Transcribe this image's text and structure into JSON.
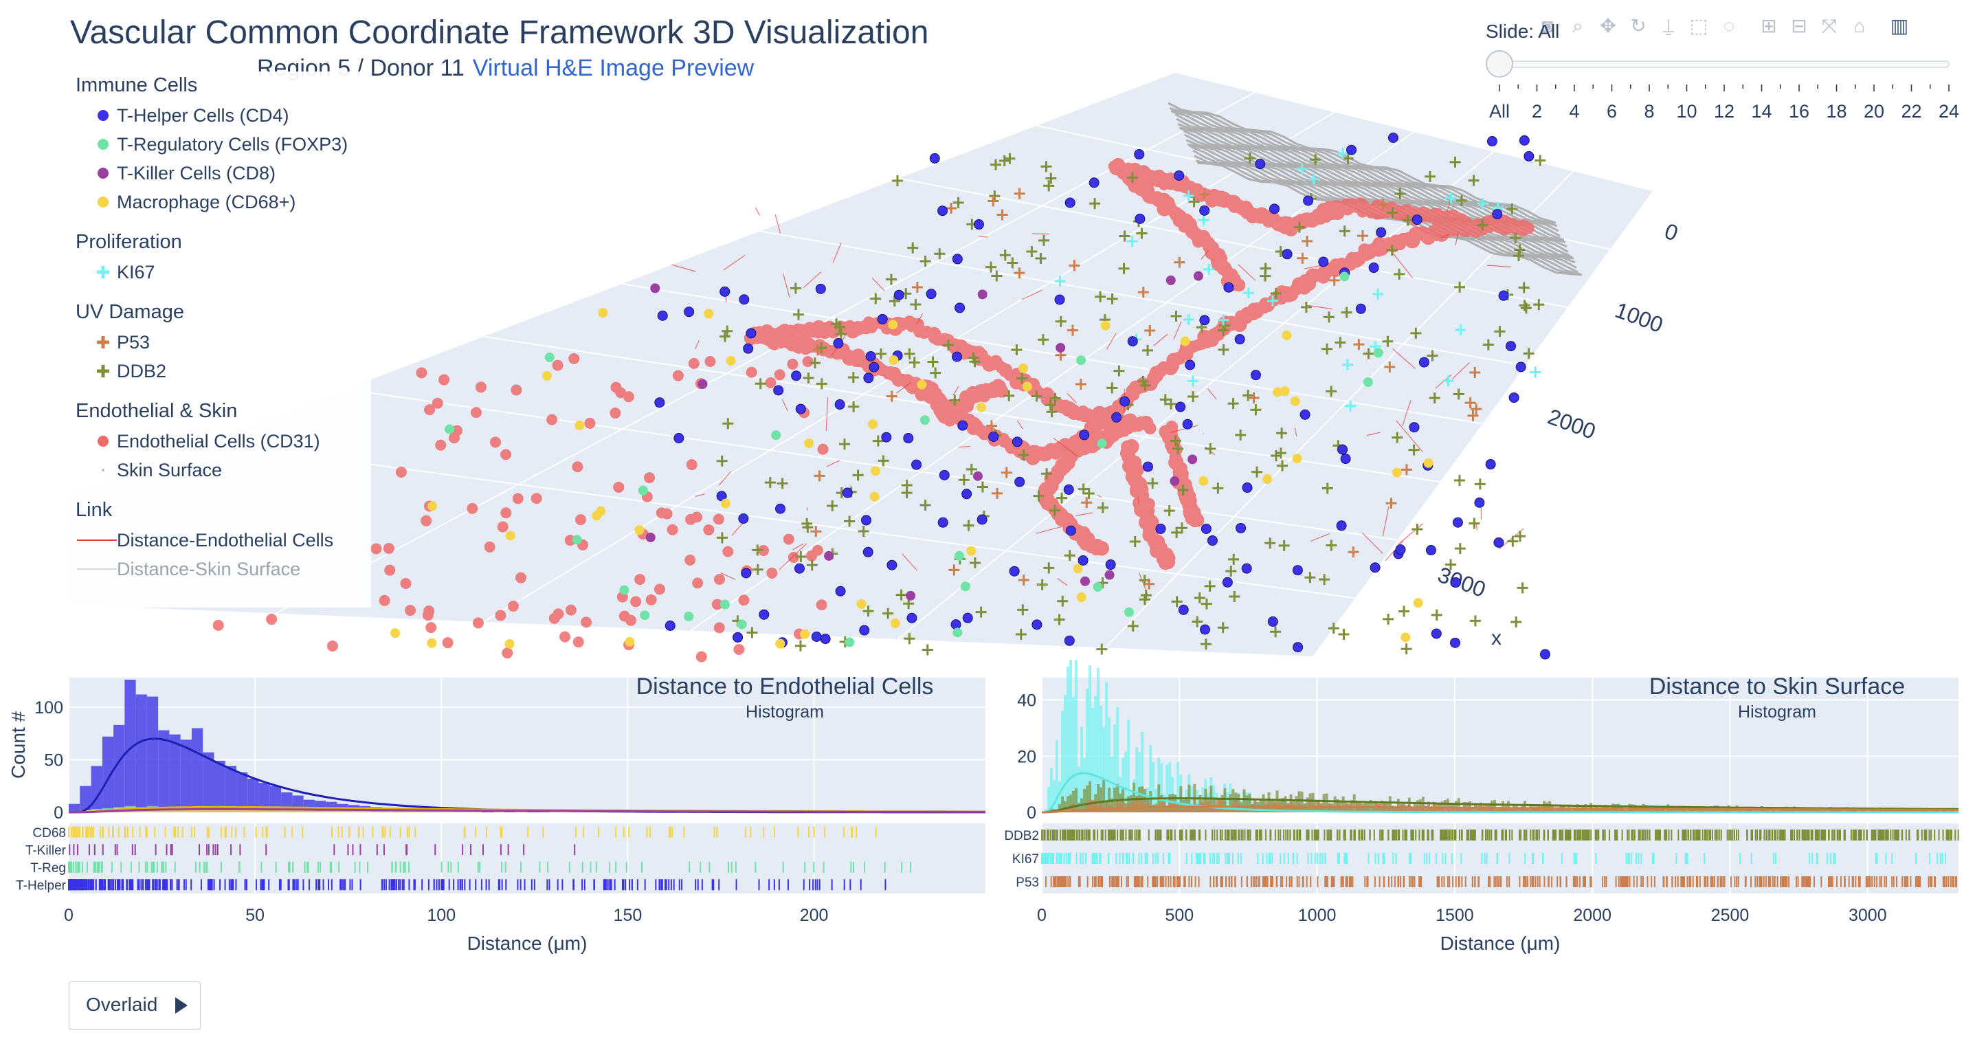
{
  "header": {
    "title": "Vascular Common Coordinate Framework 3D Visualization",
    "subtitle": "Region 5 / Donor 11",
    "link_label": "Virtual H&E Image Preview"
  },
  "legend": {
    "groups": [
      {
        "title": "Immune Cells",
        "items": [
          {
            "label": "T-Helper Cells (CD4)",
            "symbol": "dot",
            "color": "#3b32e8"
          },
          {
            "label": "T-Regulatory Cells (FOXP3)",
            "symbol": "dot",
            "color": "#6fe3a6"
          },
          {
            "label": "T-Killer Cells (CD8)",
            "symbol": "dot",
            "color": "#9b3fa0"
          },
          {
            "label": "Macrophage (CD68+)",
            "symbol": "dot",
            "color": "#f5d547"
          }
        ]
      },
      {
        "title": "Proliferation",
        "items": [
          {
            "label": "KI67",
            "symbol": "cross",
            "color": "#6ff2f0"
          }
        ]
      },
      {
        "title": "UV Damage",
        "items": [
          {
            "label": "P53",
            "symbol": "cross",
            "color": "#cc7f4d"
          },
          {
            "label": "DDB2",
            "symbol": "cross",
            "color": "#7e8f3a"
          }
        ]
      },
      {
        "title": "Endothelial & Skin",
        "items": [
          {
            "label": "Endothelial Cells (CD31)",
            "symbol": "dot",
            "color": "#ef6b6b"
          },
          {
            "label": "Skin Surface",
            "symbol": "small",
            "color": "#c0c0c0"
          }
        ]
      },
      {
        "title": "Link",
        "items": [
          {
            "label": "Distance-Endothelial Cells",
            "symbol": "line",
            "color": "#e63b3b"
          },
          {
            "label": "Distance-Skin Surface",
            "symbol": "line",
            "color": "#d8d8d8",
            "off": true
          }
        ]
      }
    ]
  },
  "slider": {
    "prefix": "Slide: ",
    "current": "All",
    "ticks": [
      "All",
      "2",
      "4",
      "6",
      "8",
      "10",
      "12",
      "14",
      "16",
      "18",
      "20",
      "22",
      "24"
    ]
  },
  "modebar": {
    "icons": [
      "camera-icon",
      "zoom-icon",
      "pan-icon",
      "orbit-rotate-icon",
      "turntable-icon",
      "box-select-icon",
      "lasso-select-icon",
      "zoom-in-icon",
      "zoom-out-icon",
      "autoscale-icon",
      "reset-axes-icon",
      "plotly-logo-icon"
    ]
  },
  "overlaid_button": {
    "label": "Overlaid"
  },
  "colors": {
    "t_helper": "#3b32e8",
    "t_reg": "#6fe3a6",
    "t_killer": "#9b3fa0",
    "macrophage": "#f5d547",
    "ki67": "#6ff2f0",
    "p53": "#cc7f4d",
    "ddb2": "#7e8f3a",
    "endothelial": "#ef6b6b",
    "skin": "#a9a9a9",
    "plot_bg": "#e5ecf6"
  },
  "chart_data": [
    {
      "type": "scatter3d",
      "axes": {
        "x": {
          "title": "x",
          "ticks": [
            0,
            1000,
            2000,
            3000
          ]
        }
      },
      "legend_placement": "top-left",
      "grid": true
    },
    {
      "type": "histogram",
      "title": "Distance to Endothelial Cells",
      "subtitle": "Histogram",
      "xlabel": "Distance (μm)",
      "ylabel": "Count #",
      "xlim": [
        0,
        246
      ],
      "ylim": [
        0,
        128
      ],
      "x_ticks": [
        0,
        50,
        100,
        150,
        200
      ],
      "y_ticks": [
        0,
        50,
        100
      ],
      "bin_width": 3,
      "series": [
        {
          "key": "t_helper",
          "values": [
            8,
            25,
            44,
            72,
            83,
            126,
            112,
            110,
            78,
            74,
            69,
            80,
            57,
            49,
            44,
            38,
            32,
            28,
            25,
            19,
            16,
            12,
            11,
            10,
            8,
            7,
            6,
            5,
            4,
            4,
            3,
            3,
            3,
            2,
            2,
            2,
            1,
            1,
            1,
            1,
            1,
            1,
            1,
            0,
            0,
            0,
            1,
            0,
            0,
            0,
            0,
            1,
            0,
            0,
            0,
            0,
            0,
            0,
            0,
            0,
            0,
            0,
            0,
            0,
            0,
            0,
            0,
            1,
            0,
            0,
            0,
            0,
            0,
            0,
            0,
            0,
            0,
            0,
            0,
            0,
            0,
            0
          ]
        },
        {
          "key": "t_reg",
          "values": [
            1,
            2,
            3,
            4,
            5,
            6,
            5,
            6,
            5,
            5,
            4,
            4,
            4,
            3,
            3,
            3,
            3,
            2,
            2,
            2,
            2,
            1,
            1,
            1,
            1,
            1,
            1,
            1,
            1,
            0,
            0,
            0,
            0,
            0,
            0,
            0,
            0,
            0,
            0,
            0,
            0,
            0,
            0,
            0,
            0,
            0,
            0,
            0,
            0,
            0,
            0,
            0,
            0,
            0,
            0,
            0,
            0,
            0,
            0,
            0,
            0,
            0,
            0,
            0,
            0,
            0,
            0,
            0,
            0,
            0,
            0,
            0,
            0,
            0,
            0,
            0,
            0,
            0,
            0,
            0,
            0,
            0
          ]
        },
        {
          "key": "macrophage",
          "values": [
            1,
            2,
            3,
            3,
            4,
            5,
            4,
            5,
            4,
            4,
            4,
            4,
            4,
            3,
            4,
            3,
            3,
            3,
            3,
            2,
            3,
            2,
            2,
            2,
            2,
            2,
            2,
            1,
            1,
            1,
            1,
            1,
            1,
            1,
            1,
            1,
            1,
            0,
            1,
            0,
            1,
            0,
            0,
            0,
            0,
            0,
            0,
            0,
            0,
            1,
            0,
            0,
            0,
            0,
            0,
            0,
            0,
            0,
            0,
            0,
            0,
            0,
            0,
            0,
            0,
            0,
            0,
            0,
            0,
            0,
            0,
            0,
            0,
            0,
            0,
            0,
            0,
            0,
            0,
            0,
            0,
            0
          ]
        }
      ],
      "fit_curves": [
        {
          "key": "t_helper",
          "color": "#1f1fb5",
          "peak": 70,
          "mode": 23,
          "sigma": 0.62
        },
        {
          "key": "macrophage",
          "color": "#e0b000",
          "peak": 5,
          "mode": 40,
          "sigma": 0.9
        },
        {
          "key": "t_killer",
          "color": "#9b3fa0",
          "peak": 3,
          "mode": 40,
          "sigma": 0.9
        }
      ],
      "rug_rows": [
        "CD68",
        "T-Killer",
        "T-Reg",
        "T-Helper"
      ]
    },
    {
      "type": "histogram",
      "title": "Distance to Skin Surface",
      "subtitle": "Histogram",
      "xlabel": "Distance (μm)",
      "ylabel": "",
      "xlim": [
        0,
        3330
      ],
      "ylim": [
        0,
        48
      ],
      "x_ticks": [
        0,
        500,
        1000,
        1500,
        2000,
        2500,
        3000
      ],
      "y_ticks": [
        0,
        20,
        40
      ],
      "bin_width": 10,
      "series": [
        {
          "key": "ki67",
          "peak": 48,
          "mode": 100,
          "decay": 300
        },
        {
          "key": "ddb2",
          "peak": 9,
          "mode": 150,
          "decay": 1400
        },
        {
          "key": "p53",
          "peak": 4,
          "mode": 200,
          "decay": 2000
        }
      ],
      "fit_curves": [
        {
          "key": "ki67",
          "color": "#5fe6dc",
          "peak": 14,
          "mode": 150,
          "sigma": 0.7
        },
        {
          "key": "ddb2",
          "color": "#5f7a1f",
          "peak": 5,
          "mode": 500,
          "sigma": 1.1
        },
        {
          "key": "p53",
          "color": "#cc7f4d",
          "peak": 2,
          "mode": 700,
          "sigma": 1.2
        }
      ],
      "rug_rows": [
        "DDB2",
        "KI67",
        "P53"
      ]
    }
  ]
}
